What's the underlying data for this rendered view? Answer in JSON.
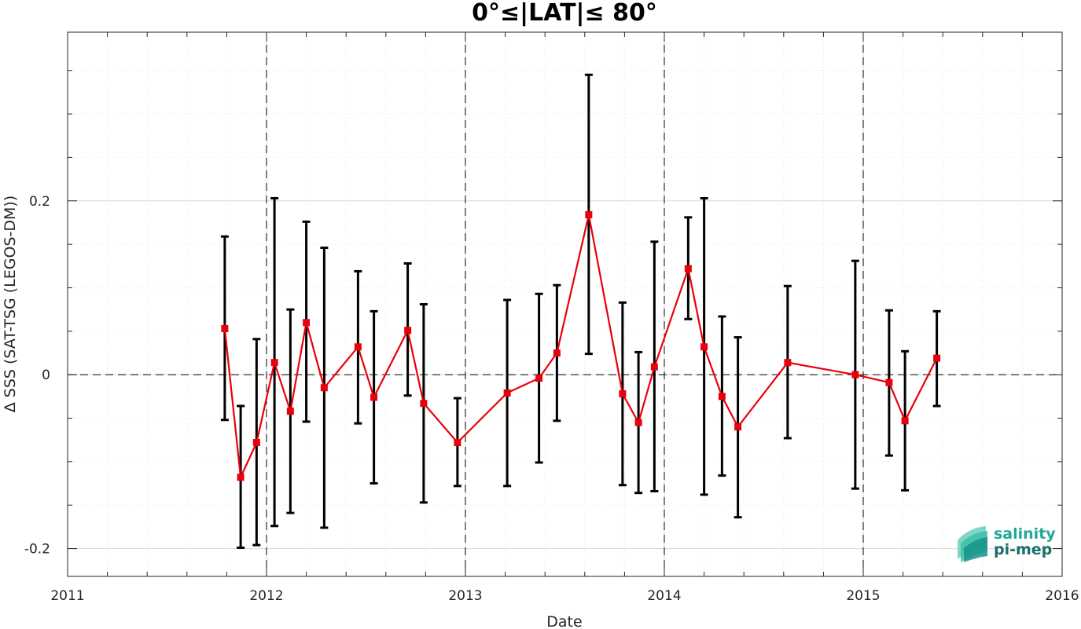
{
  "chart_data": {
    "type": "line",
    "title": "0°≤|LAT|≤ 80°",
    "xlabel": "Date",
    "ylabel": "Δ SSS (SAT-TSG (LEGOS-DM))",
    "xlim": [
      2011,
      2016
    ],
    "ylim": [
      -0.232,
      0.394
    ],
    "x_ticks": [
      "2011",
      "2012",
      "2013",
      "2014",
      "2015",
      "2016"
    ],
    "y_ticks": [
      "-0.2",
      "0",
      "0.2"
    ],
    "y_tick_values": [
      -0.2,
      0,
      0.2
    ],
    "grid": true,
    "vertical_dashed_lines_at_years": [
      2012,
      2013,
      2014,
      2015
    ],
    "horizontal_dashed_line_at": 0,
    "series": [
      {
        "style": "red line with square markers and black error bars",
        "color": "#e8000b",
        "errorbar_color": "#000000",
        "points": [
          {
            "x": 2011.79,
            "y": 0.053,
            "lo": -0.052,
            "hi": 0.159
          },
          {
            "x": 2011.87,
            "y": -0.118,
            "lo": -0.199,
            "hi": -0.036
          },
          {
            "x": 2011.95,
            "y": -0.078,
            "lo": -0.196,
            "hi": 0.041
          },
          {
            "x": 2012.04,
            "y": 0.014,
            "lo": -0.174,
            "hi": 0.203
          },
          {
            "x": 2012.12,
            "y": -0.042,
            "lo": -0.159,
            "hi": 0.075
          },
          {
            "x": 2012.2,
            "y": 0.06,
            "lo": -0.054,
            "hi": 0.176
          },
          {
            "x": 2012.29,
            "y": -0.015,
            "lo": -0.176,
            "hi": 0.146
          },
          {
            "x": 2012.46,
            "y": 0.032,
            "lo": -0.056,
            "hi": 0.119
          },
          {
            "x": 2012.54,
            "y": -0.026,
            "lo": -0.125,
            "hi": 0.073
          },
          {
            "x": 2012.71,
            "y": 0.051,
            "lo": -0.024,
            "hi": 0.128
          },
          {
            "x": 2012.79,
            "y": -0.033,
            "lo": -0.147,
            "hi": 0.081
          },
          {
            "x": 2012.96,
            "y": -0.078,
            "lo": -0.128,
            "hi": -0.027
          },
          {
            "x": 2013.21,
            "y": -0.021,
            "lo": -0.128,
            "hi": 0.086
          },
          {
            "x": 2013.37,
            "y": -0.004,
            "lo": -0.101,
            "hi": 0.093
          },
          {
            "x": 2013.46,
            "y": 0.025,
            "lo": -0.053,
            "hi": 0.103
          },
          {
            "x": 2013.62,
            "y": 0.184,
            "lo": 0.024,
            "hi": 0.345
          },
          {
            "x": 2013.79,
            "y": -0.022,
            "lo": -0.127,
            "hi": 0.083
          },
          {
            "x": 2013.87,
            "y": -0.055,
            "lo": -0.136,
            "hi": 0.026
          },
          {
            "x": 2013.95,
            "y": 0.009,
            "lo": -0.134,
            "hi": 0.153
          },
          {
            "x": 2014.12,
            "y": 0.122,
            "lo": 0.064,
            "hi": 0.181
          },
          {
            "x": 2014.2,
            "y": 0.032,
            "lo": -0.138,
            "hi": 0.203
          },
          {
            "x": 2014.29,
            "y": -0.025,
            "lo": -0.116,
            "hi": 0.067
          },
          {
            "x": 2014.37,
            "y": -0.06,
            "lo": -0.164,
            "hi": 0.043
          },
          {
            "x": 2014.62,
            "y": 0.014,
            "lo": -0.073,
            "hi": 0.102
          },
          {
            "x": 2014.96,
            "y": 0.0,
            "lo": -0.131,
            "hi": 0.131
          },
          {
            "x": 2015.13,
            "y": -0.009,
            "lo": -0.093,
            "hi": 0.074
          },
          {
            "x": 2015.21,
            "y": -0.053,
            "lo": -0.133,
            "hi": 0.027
          },
          {
            "x": 2015.37,
            "y": 0.019,
            "lo": -0.036,
            "hi": 0.073
          }
        ]
      }
    ]
  },
  "logo": {
    "line1": "salinity",
    "line2": "pi-mep",
    "color": "#1fa89a"
  }
}
